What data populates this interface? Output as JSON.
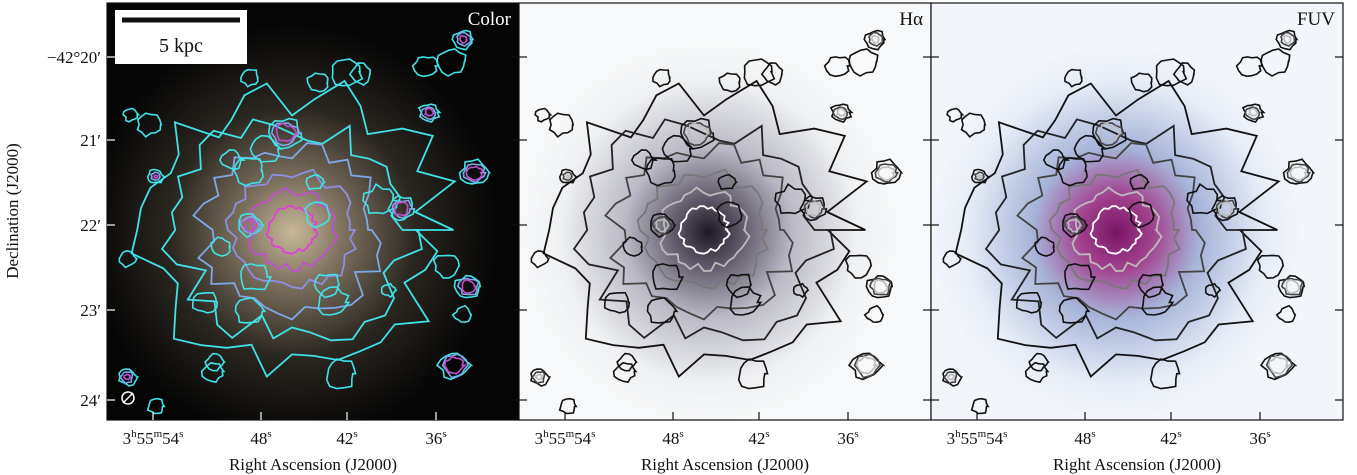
{
  "panels": [
    {
      "label": "Color"
    },
    {
      "label": "Hα"
    },
    {
      "label": "FUV"
    }
  ],
  "scale_bar": "5 kpc",
  "y_axis": {
    "title": "Declination (J2000)",
    "ticks": [
      "−42°20′",
      "21′",
      "22′",
      "23′",
      "24′"
    ]
  },
  "x_axis": {
    "title": "Right Ascension (J2000)",
    "ticks": [
      {
        "parts": [
          "3",
          "h",
          "55",
          "m",
          "54",
          "s"
        ]
      },
      {
        "parts": [
          "48",
          "s"
        ]
      },
      {
        "parts": [
          "42",
          "s"
        ]
      },
      {
        "parts": [
          "36",
          "s"
        ]
      }
    ]
  }
}
